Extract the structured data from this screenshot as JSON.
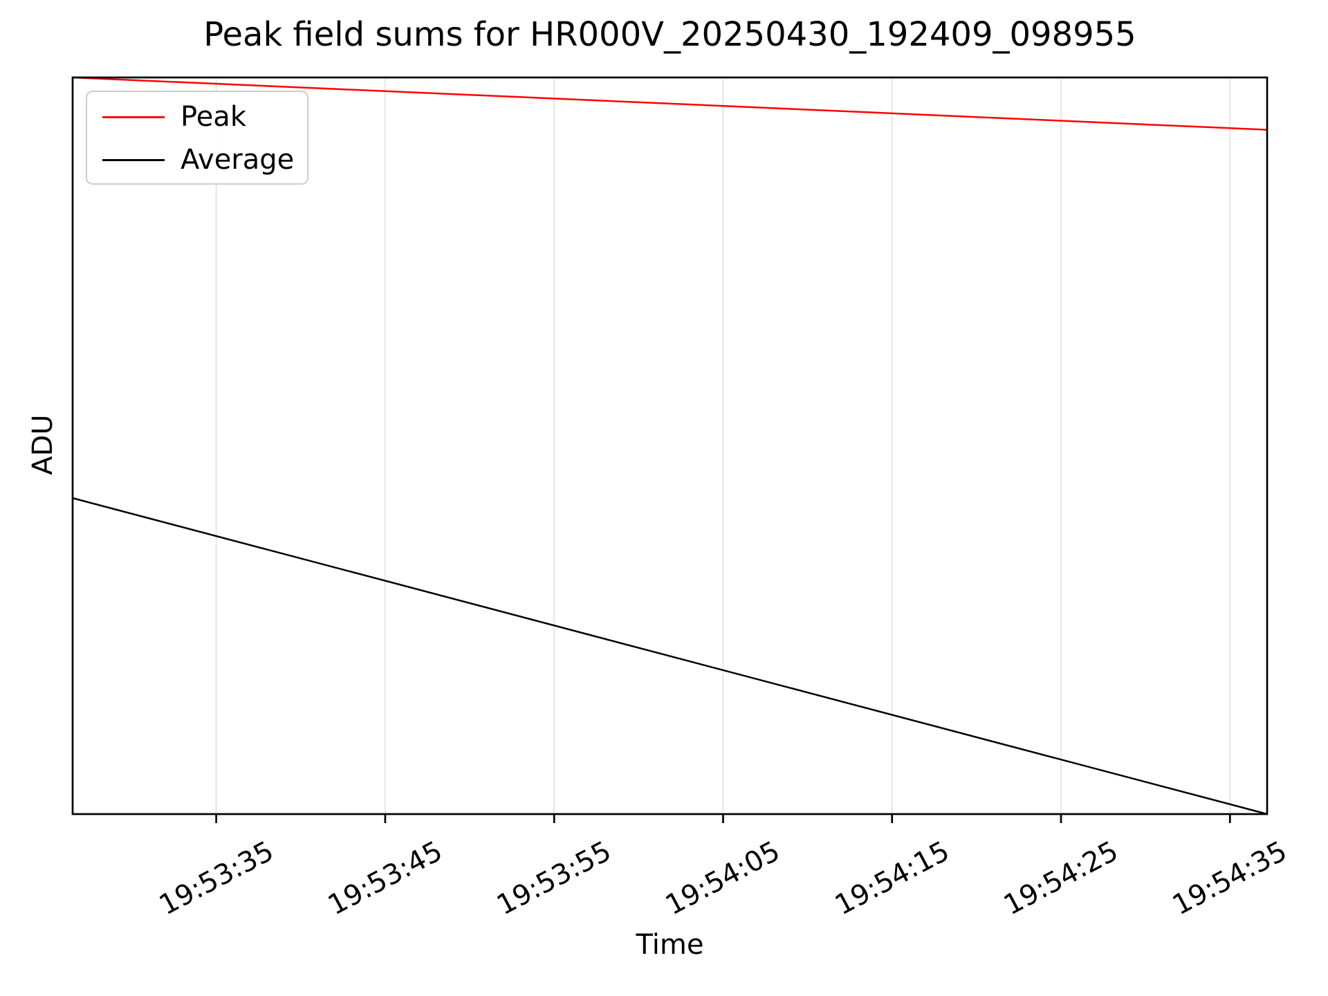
{
  "chart_data": {
    "type": "line",
    "title": "Peak field sums for HR000V_20250430_192409_098955",
    "xlabel": "Time",
    "ylabel": "ADU",
    "grid": {
      "vertical": true,
      "horizontal": false,
      "color": "#e9e9e9"
    },
    "legend_position": "upper-left",
    "x_axis": {
      "type": "time",
      "tick_labels": [
        "19:53:35",
        "19:53:45",
        "19:53:55",
        "19:54:05",
        "19:54:15",
        "19:54:25",
        "19:54:35"
      ],
      "tick_interval_s": 10,
      "first_tick_offset_s": 8.5,
      "range_s": [
        0,
        70.7
      ],
      "range_time_approx": [
        "19:53:26",
        "19:54:37"
      ],
      "tick_label_rotation_deg": 28
    },
    "y_axis": {
      "tick_labels": [],
      "range_frac": [
        0,
        1
      ]
    },
    "series": [
      {
        "name": "Peak",
        "color": "#ff0000",
        "points": [
          {
            "t_s": 0,
            "y_frac": 1.0
          },
          {
            "t_s": 70.7,
            "y_frac": 0.929
          }
        ]
      },
      {
        "name": "Average",
        "color": "#000000",
        "points": [
          {
            "t_s": 0,
            "y_frac": 0.429
          },
          {
            "t_s": 70.7,
            "y_frac": 0.0
          }
        ]
      }
    ],
    "colors": {
      "spine": "#000000",
      "background": "#ffffff"
    }
  }
}
